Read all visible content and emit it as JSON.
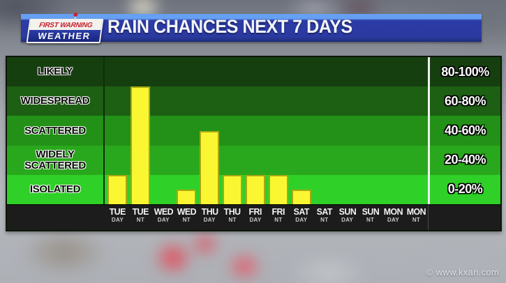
{
  "header": {
    "title": "RAIN CHANCES NEXT 7 DAYS",
    "logo": {
      "line1": "FIRST WARNING",
      "line2": "WEATHER"
    }
  },
  "watermark": "© www.kxan.com",
  "chart_data": {
    "type": "bar",
    "title": "RAIN CHANCES NEXT 7 DAYS",
    "ylim": [
      0,
      100
    ],
    "grid": false,
    "legend_position": "none",
    "bands": [
      {
        "label": "LIKELY",
        "range": "80-100%",
        "color": "#163f0f"
      },
      {
        "label": "WIDESPREAD",
        "range": "60-80%",
        "color": "#1d5f13"
      },
      {
        "label": "SCATTERED",
        "range": "40-60%",
        "color": "#239117"
      },
      {
        "label": "WIDELY SCATTERED",
        "range": "20-40%",
        "color": "#2aa81d"
      },
      {
        "label": "ISOLATED",
        "range": "0-20%",
        "color": "#2fd028"
      }
    ],
    "categories": [
      "TUE DAY",
      "TUE NT",
      "WED DAY",
      "WED NT",
      "THU DAY",
      "THU NT",
      "FRI DAY",
      "FRI NT",
      "SAT DAY",
      "SAT NT",
      "SUN DAY",
      "SUN NT",
      "MON DAY",
      "MON NT"
    ],
    "values": [
      20,
      80,
      0,
      10,
      50,
      20,
      20,
      20,
      10,
      0,
      0,
      0,
      0,
      0
    ],
    "columns": [
      {
        "day": "TUE",
        "period": "DAY",
        "value": 20
      },
      {
        "day": "TUE",
        "period": "NT",
        "value": 80
      },
      {
        "day": "WED",
        "period": "DAY",
        "value": 0
      },
      {
        "day": "WED",
        "period": "NT",
        "value": 10
      },
      {
        "day": "THU",
        "period": "DAY",
        "value": 50
      },
      {
        "day": "THU",
        "period": "NT",
        "value": 20
      },
      {
        "day": "FRI",
        "period": "DAY",
        "value": 20
      },
      {
        "day": "FRI",
        "period": "NT",
        "value": 20
      },
      {
        "day": "SAT",
        "period": "DAY",
        "value": 10
      },
      {
        "day": "SAT",
        "period": "NT",
        "value": 0
      },
      {
        "day": "SUN",
        "period": "DAY",
        "value": 0
      },
      {
        "day": "SUN",
        "period": "NT",
        "value": 0
      },
      {
        "day": "MON",
        "period": "DAY",
        "value": 0
      },
      {
        "day": "MON",
        "period": "NT",
        "value": 0
      }
    ],
    "bar_color": "#fbf632",
    "bar_border_color": "#a8a912"
  },
  "colors": {
    "header_blue": "#2b3aa0",
    "header_light_strip": "#66a0f2",
    "logo_red": "#c41e2e",
    "logo_navy": "#1e2f94",
    "axis_bg": "#1c1c1c"
  }
}
